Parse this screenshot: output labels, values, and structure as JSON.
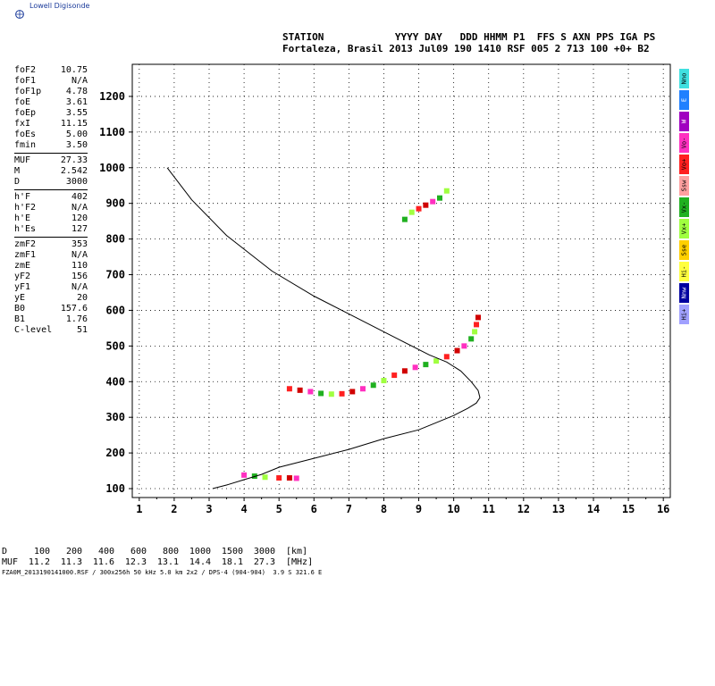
{
  "logo": {
    "text": "Lowell Digisonde"
  },
  "header": {
    "line1": "STATION            YYYY DAY   DDD HHMM P1  FFS S AXN PPS IGA PS",
    "line2": "Fortaleza, Brasil 2013 Jul09 190 1410 RSF 005 2 713 100 +0+ B2"
  },
  "params": {
    "group1": [
      {
        "name": "foF2",
        "value": "10.75"
      },
      {
        "name": "foF1",
        "value": "N/A"
      },
      {
        "name": "foF1p",
        "value": "4.78"
      },
      {
        "name": "foE",
        "value": "3.61"
      },
      {
        "name": "foEp",
        "value": "3.55"
      },
      {
        "name": "fxI",
        "value": "11.15"
      },
      {
        "name": "foEs",
        "value": "5.00"
      },
      {
        "name": "fmin",
        "value": "3.50"
      }
    ],
    "group2": [
      {
        "name": "MUF",
        "value": "27.33"
      },
      {
        "name": "M",
        "value": "2.542"
      },
      {
        "name": "D",
        "value": "3000"
      }
    ],
    "group3": [
      {
        "name": "h'F",
        "value": "402"
      },
      {
        "name": "h'F2",
        "value": "N/A"
      },
      {
        "name": "h'E",
        "value": "120"
      },
      {
        "name": "h'Es",
        "value": "127"
      }
    ],
    "group4": [
      {
        "name": "zmF2",
        "value": "353"
      },
      {
        "name": "zmF1",
        "value": "N/A"
      },
      {
        "name": "zmE",
        "value": "110"
      },
      {
        "name": "yF2",
        "value": "156"
      },
      {
        "name": "yF1",
        "value": "N/A"
      },
      {
        "name": "yE",
        "value": "20"
      },
      {
        "name": "B0",
        "value": "157.6"
      },
      {
        "name": "B1",
        "value": "1.76"
      },
      {
        "name": "C-level",
        "value": "51"
      }
    ]
  },
  "legend": [
    {
      "label": "Nno",
      "color": "#40e0e0"
    },
    {
      "label": "E",
      "color": "#2080ff"
    },
    {
      "label": "W",
      "color": "#a000c0"
    },
    {
      "label": "Vo-",
      "color": "#ff30c0"
    },
    {
      "label": "Vo+",
      "color": "#ff2020"
    },
    {
      "label": "Ssw",
      "color": "#ffa0a0"
    },
    {
      "label": "Vx-",
      "color": "#20b020"
    },
    {
      "label": "Vx+",
      "color": "#a0ff40"
    },
    {
      "label": "Sse",
      "color": "#ffd000"
    },
    {
      "label": "Hi-",
      "color": "#ffff40"
    },
    {
      "label": "Nnw",
      "color": "#0000a0"
    },
    {
      "label": "Hi+",
      "color": "#a0a0ff"
    }
  ],
  "muf_table": {
    "row1_label": "D",
    "row1_unit": "[km]",
    "row1": [
      "100",
      "200",
      "400",
      "600",
      "800",
      "1000",
      "1500",
      "3000"
    ],
    "row2_label": "MUF",
    "row2_unit": "[MHz]",
    "row2": [
      "11.2",
      "11.3",
      "11.6",
      "12.3",
      "13.1",
      "14.4",
      "18.1",
      "27.3"
    ]
  },
  "footer": "FZA0M_2013190141000.RSF / 300x256h 50 kHz 5.0 km 2x2 / DPS-4 (904-904)  3.9 S 321.6 E",
  "chart_data": {
    "type": "scatter",
    "xlim": [
      0.8,
      16.2
    ],
    "ylim": [
      75,
      1290
    ],
    "xticks": [
      "1",
      "2",
      "3",
      "4",
      "5",
      "6",
      "7",
      "8",
      "9",
      "10",
      "11",
      "12",
      "13",
      "14",
      "15",
      "16"
    ],
    "yticks": [
      "100",
      "200",
      "300",
      "400",
      "500",
      "600",
      "700",
      "800",
      "900",
      "1000",
      "1100",
      "1200"
    ],
    "grid": true,
    "profile_curve": [
      [
        3.1,
        100
      ],
      [
        3.5,
        110
      ],
      [
        4.0,
        125
      ],
      [
        4.5,
        140
      ],
      [
        5.0,
        160
      ],
      [
        6.0,
        185
      ],
      [
        7.0,
        210
      ],
      [
        8.0,
        240
      ],
      [
        9.0,
        265
      ],
      [
        9.5,
        285
      ],
      [
        10.0,
        305
      ],
      [
        10.4,
        325
      ],
      [
        10.65,
        340
      ],
      [
        10.75,
        355
      ],
      [
        10.7,
        375
      ],
      [
        10.5,
        400
      ],
      [
        10.2,
        430
      ],
      [
        9.8,
        455
      ],
      [
        9.3,
        475
      ],
      [
        8.5,
        515
      ],
      [
        7.5,
        565
      ],
      [
        6.0,
        640
      ],
      [
        4.8,
        710
      ],
      [
        3.5,
        810
      ],
      [
        2.5,
        910
      ],
      [
        1.8,
        1000
      ]
    ],
    "trace_points": [
      [
        5.3,
        380
      ],
      [
        5.6,
        376
      ],
      [
        5.9,
        372
      ],
      [
        6.2,
        367
      ],
      [
        6.5,
        365
      ],
      [
        6.8,
        366
      ],
      [
        7.1,
        372
      ],
      [
        7.4,
        380
      ],
      [
        7.7,
        390
      ],
      [
        8.0,
        403
      ],
      [
        8.3,
        418
      ],
      [
        8.6,
        430
      ],
      [
        8.9,
        440
      ],
      [
        9.2,
        448
      ],
      [
        9.5,
        458
      ],
      [
        9.8,
        470
      ],
      [
        10.1,
        487
      ],
      [
        10.3,
        500
      ],
      [
        10.5,
        520
      ],
      [
        10.6,
        540
      ],
      [
        10.65,
        560
      ],
      [
        10.7,
        580
      ],
      [
        4.0,
        138
      ],
      [
        4.3,
        135
      ],
      [
        4.6,
        132
      ],
      [
        5.0,
        130
      ],
      [
        5.3,
        130
      ],
      [
        5.5,
        129
      ],
      [
        8.6,
        855
      ],
      [
        8.8,
        875
      ],
      [
        9.0,
        885
      ],
      [
        9.2,
        895
      ],
      [
        9.4,
        905
      ],
      [
        9.6,
        915
      ],
      [
        9.8,
        935
      ]
    ]
  }
}
